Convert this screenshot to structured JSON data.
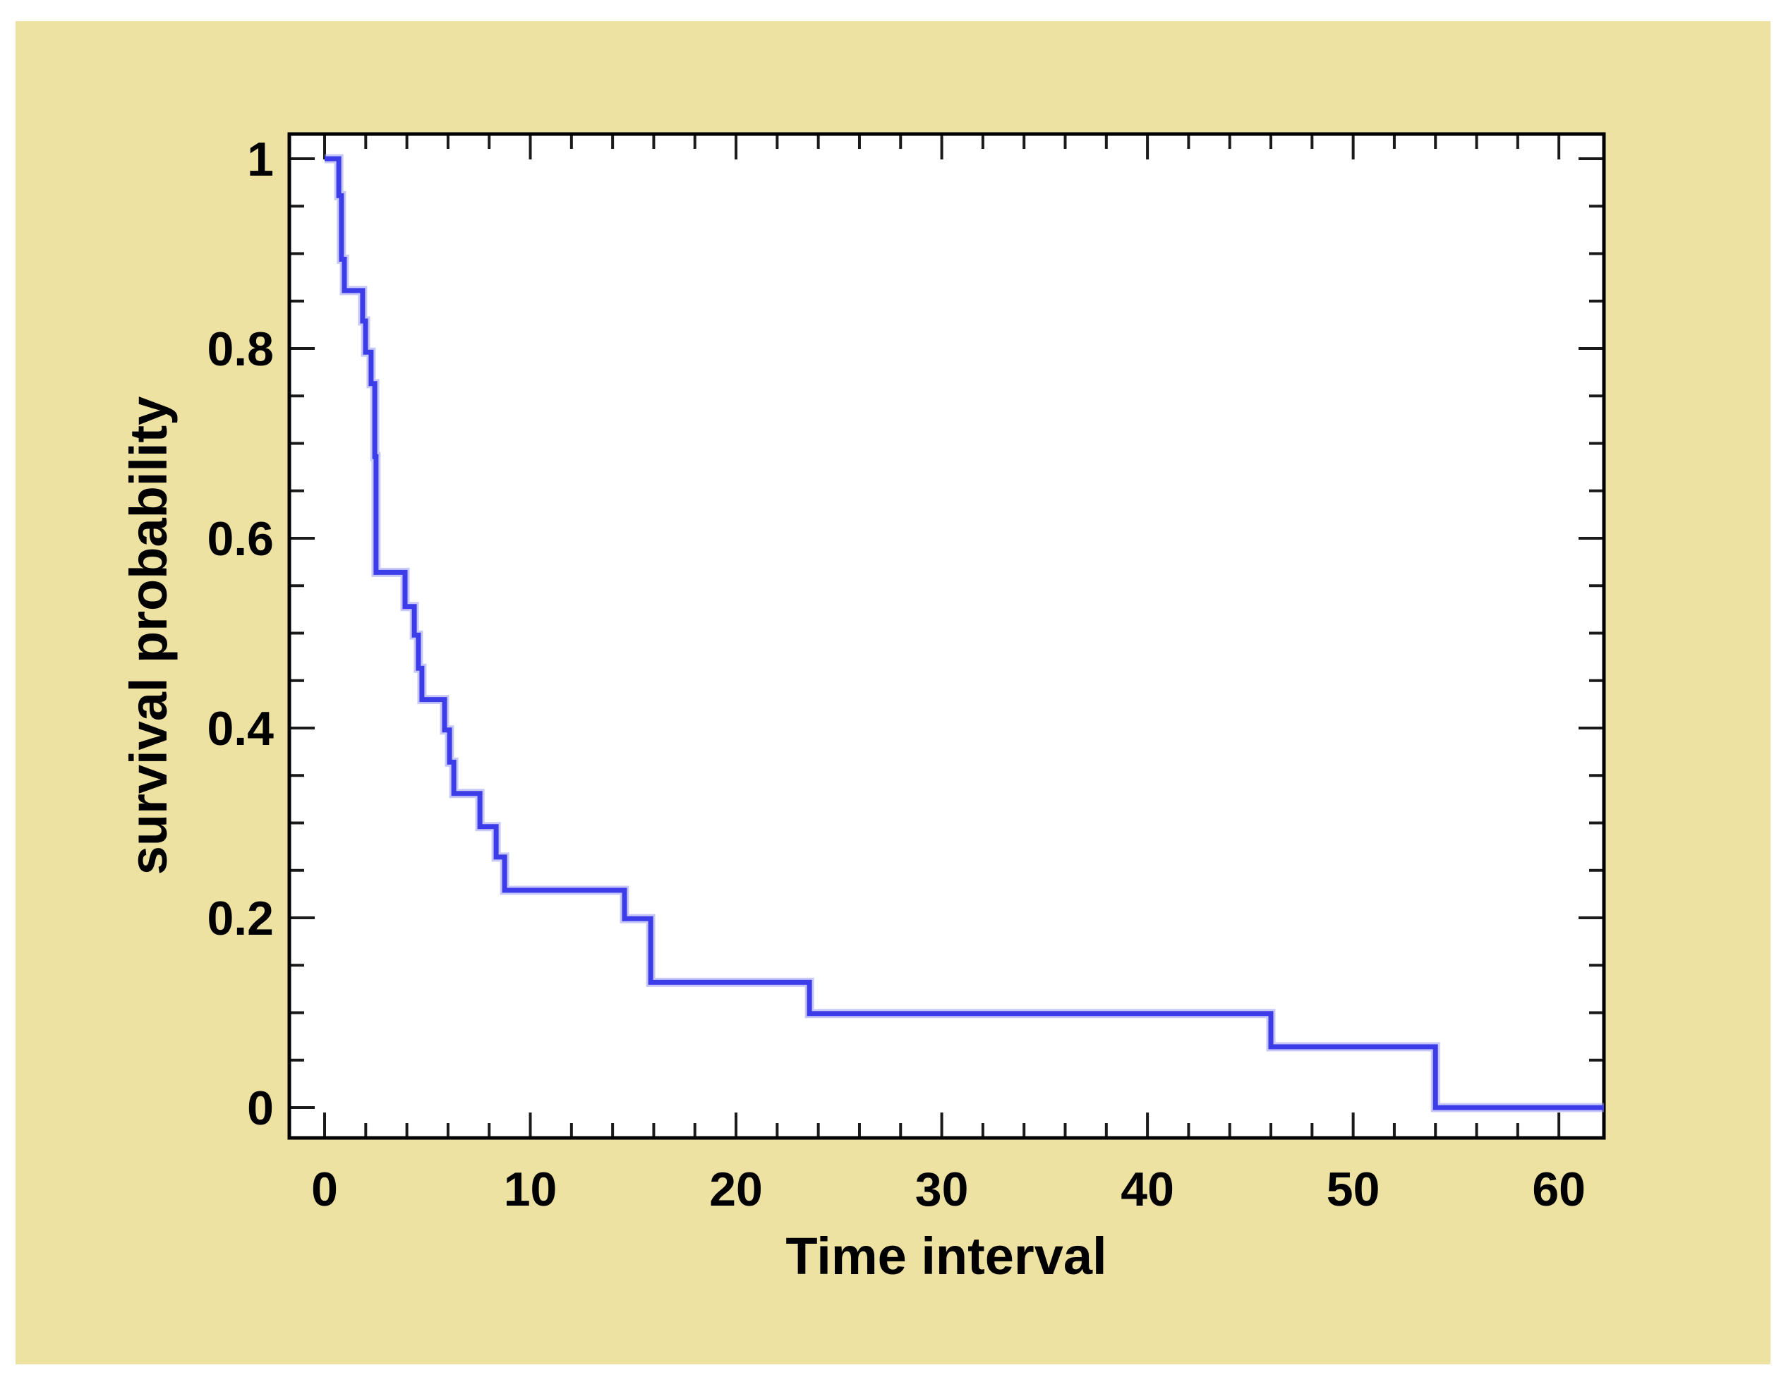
{
  "chart_data": {
    "type": "line",
    "subtype": "kaplan-meier-step-survival-curve",
    "title": "",
    "xlabel": "Time interval",
    "ylabel": "survival probability",
    "x_ticks": [
      0,
      10,
      20,
      30,
      40,
      50,
      60
    ],
    "x_tick_labels": [
      "0",
      "10",
      "20",
      "30",
      "40",
      "50",
      "60"
    ],
    "x_minor_step": 2,
    "y_ticks": [
      1,
      0.8,
      0.6,
      0.4,
      0.2,
      0
    ],
    "y_tick_labels": [
      "1",
      "0.8",
      "0.6",
      "0.4",
      "0.2",
      "0"
    ],
    "y_minor_step": 0.05,
    "xlim": [
      -1.715,
      62.19
    ],
    "ylim": [
      -0.032,
      1.026
    ],
    "grid": false,
    "legend": false,
    "series": [
      {
        "name": "survival probability",
        "description": "Step function; each pair is [time, survival probability after the drop at that time]; value holds constant until the next time.",
        "steps": [
          [
            0.0,
            1.0
          ],
          [
            0.69,
            0.961
          ],
          [
            0.82,
            0.894
          ],
          [
            0.96,
            0.861
          ],
          [
            1.85,
            0.829
          ],
          [
            1.99,
            0.796
          ],
          [
            2.26,
            0.763
          ],
          [
            2.44,
            0.686
          ],
          [
            2.5,
            0.564
          ],
          [
            3.91,
            0.528
          ],
          [
            4.36,
            0.498
          ],
          [
            4.56,
            0.463
          ],
          [
            4.73,
            0.43
          ],
          [
            5.83,
            0.398
          ],
          [
            6.07,
            0.364
          ],
          [
            6.28,
            0.331
          ],
          [
            7.55,
            0.296
          ],
          [
            8.34,
            0.264
          ],
          [
            8.75,
            0.229
          ],
          [
            14.58,
            0.199
          ],
          [
            15.85,
            0.132
          ],
          [
            23.57,
            0.099
          ],
          [
            46.0,
            0.064
          ],
          [
            54.0,
            0.0
          ]
        ],
        "curve_end_t": 62.19
      }
    ],
    "colors": {
      "panel_background": "#EEE2A3",
      "plot_background": "#FFFFFF",
      "frame": "#000000",
      "tick": "#1a1a1a",
      "text": "#000000",
      "curve_core": "#3C3CE8",
      "curve_halo": "#9A9AF2"
    }
  }
}
